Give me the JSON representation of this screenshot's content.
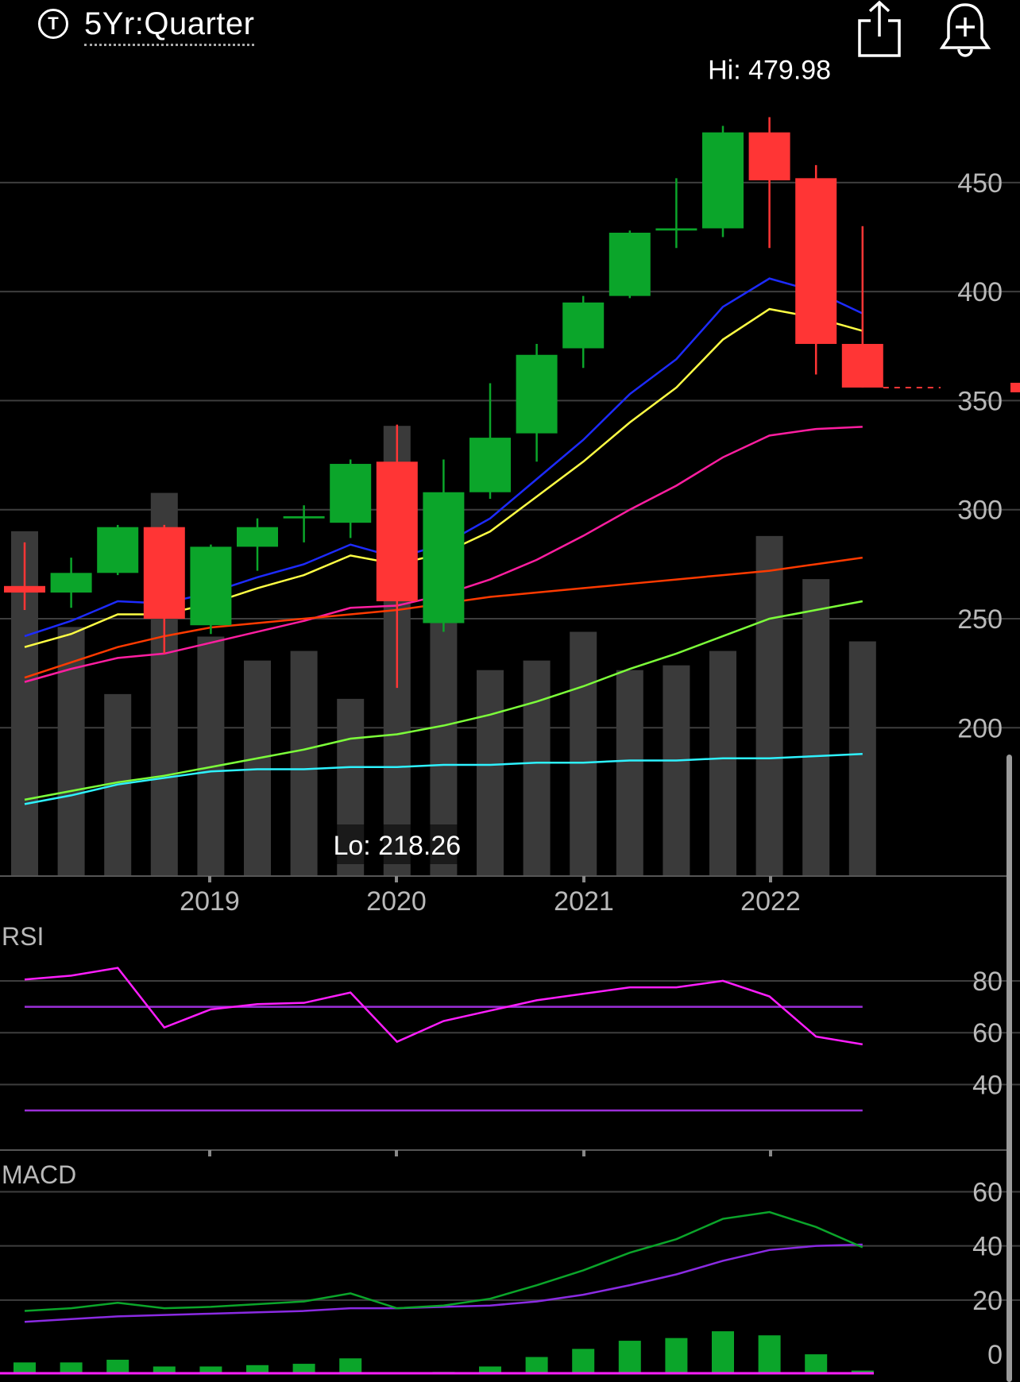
{
  "header": {
    "range_icon_glyph": "T",
    "range_label": "5Yr:Quarter",
    "share_icon": "share-icon",
    "alert_icon": "bell-plus-icon"
  },
  "colors": {
    "up": "#0ba52a",
    "down": "#ff3535",
    "volume": "#3a3a3a",
    "grid": "#3e3e3e",
    "text": "#b9b9b9"
  },
  "chart_data": [
    {
      "type": "candlestick",
      "title": "",
      "price_axis_ticks": [
        200,
        250,
        300,
        350,
        400,
        450
      ],
      "ylim": [
        132,
        490
      ],
      "year_labels": [
        "2019",
        "2020",
        "2021",
        "2022"
      ],
      "hi_label": "Hi: 479.98",
      "lo_label": "Lo: 218.26",
      "current_price_marker": 356,
      "candles": [
        {
          "o": 265,
          "h": 285,
          "l": 254,
          "c": 262
        },
        {
          "o": 262,
          "h": 278,
          "l": 255,
          "c": 271
        },
        {
          "o": 271,
          "h": 293,
          "l": 270,
          "c": 292
        },
        {
          "o": 292,
          "h": 293,
          "l": 234,
          "c": 250
        },
        {
          "o": 247,
          "h": 284,
          "l": 243,
          "c": 283
        },
        {
          "o": 283,
          "h": 296,
          "l": 272,
          "c": 292
        },
        {
          "o": 296,
          "h": 302,
          "l": 285,
          "c": 297
        },
        {
          "o": 294,
          "h": 323,
          "l": 287,
          "c": 321
        },
        {
          "o": 322,
          "h": 339,
          "l": 218.26,
          "c": 258
        },
        {
          "o": 248,
          "h": 323,
          "l": 244,
          "c": 308
        },
        {
          "o": 308,
          "h": 358,
          "l": 305,
          "c": 333
        },
        {
          "o": 335,
          "h": 376,
          "l": 322,
          "c": 371
        },
        {
          "o": 374,
          "h": 398,
          "l": 365,
          "c": 395
        },
        {
          "o": 398,
          "h": 428,
          "l": 397,
          "c": 427
        },
        {
          "o": 428,
          "h": 452,
          "l": 420,
          "c": 429
        },
        {
          "o": 429,
          "h": 476,
          "l": 425,
          "c": 473
        },
        {
          "o": 473,
          "h": 479.98,
          "l": 420,
          "c": 451
        },
        {
          "o": 452,
          "h": 458,
          "l": 362,
          "c": 376
        },
        {
          "o": 376,
          "h": 430,
          "l": 356,
          "c": 356
        }
      ],
      "volume_relative": [
        0.72,
        0.52,
        0.38,
        0.8,
        0.5,
        0.45,
        0.47,
        0.37,
        0.94,
        0.58,
        0.43,
        0.45,
        0.51,
        0.43,
        0.44,
        0.47,
        0.71,
        0.62,
        0.49
      ],
      "moving_averages": [
        {
          "color": "#1d2bff",
          "values": [
            242,
            249,
            258,
            257,
            262,
            269,
            275,
            284,
            278,
            284,
            296,
            314,
            332,
            353,
            369,
            393,
            406,
            400,
            390
          ]
        },
        {
          "color": "#ffff44",
          "values": [
            237,
            243,
            252,
            252,
            257,
            264,
            270,
            279,
            275,
            280,
            290,
            306,
            322,
            340,
            356,
            378,
            392,
            388,
            382
          ]
        },
        {
          "color": "#ff1ea0",
          "values": [
            221,
            227,
            232,
            234,
            239,
            244,
            249,
            255,
            256,
            261,
            268,
            277,
            288,
            300,
            311,
            324,
            334,
            337,
            338
          ]
        },
        {
          "color": "#ff3a00",
          "values": [
            223,
            230,
            237,
            242,
            246,
            248,
            250,
            252,
            254,
            257,
            260,
            262,
            264,
            266,
            268,
            270,
            272,
            275,
            278
          ]
        },
        {
          "color": "#7dff3a",
          "values": [
            167,
            171,
            175,
            178,
            182,
            186,
            190,
            195,
            197,
            201,
            206,
            212,
            219,
            227,
            234,
            242,
            250,
            254,
            258
          ]
        },
        {
          "color": "#2ef2ff",
          "values": [
            165,
            169,
            174,
            177,
            180,
            181,
            181,
            182,
            182,
            183,
            183,
            184,
            184,
            185,
            185,
            186,
            186,
            187,
            188
          ]
        }
      ]
    },
    {
      "type": "line",
      "label": "RSI",
      "yticks": [
        40,
        60,
        80
      ],
      "ylim": [
        15,
        95
      ],
      "overbought": 70,
      "oversold": 30,
      "values": [
        80.5,
        82,
        85,
        62,
        69,
        71,
        71.5,
        75.5,
        56.5,
        64.5,
        68.5,
        72.5,
        75,
        77.5,
        77.5,
        80,
        74,
        58.5,
        55.5
      ]
    },
    {
      "type": "line+bar",
      "label": "MACD",
      "yticks": [
        0,
        20,
        40,
        60
      ],
      "ylim": [
        -7,
        66
      ],
      "macd": [
        16,
        17,
        19,
        17,
        17.5,
        18.5,
        19.5,
        22.5,
        17,
        18,
        20.5,
        25.5,
        31,
        37.5,
        42.5,
        50,
        52.5,
        47,
        39.5
      ],
      "signal": [
        12,
        13,
        14,
        14.5,
        15,
        15.5,
        16,
        17,
        17,
        17.5,
        18,
        19.5,
        22,
        25.5,
        29.5,
        34.5,
        38.5,
        40,
        40.5
      ],
      "histogram": [
        4,
        4,
        5,
        2.5,
        2.5,
        3,
        3.5,
        5.5,
        0,
        0.5,
        2.5,
        6,
        9,
        12,
        13,
        15.5,
        14,
        7,
        1
      ]
    }
  ]
}
